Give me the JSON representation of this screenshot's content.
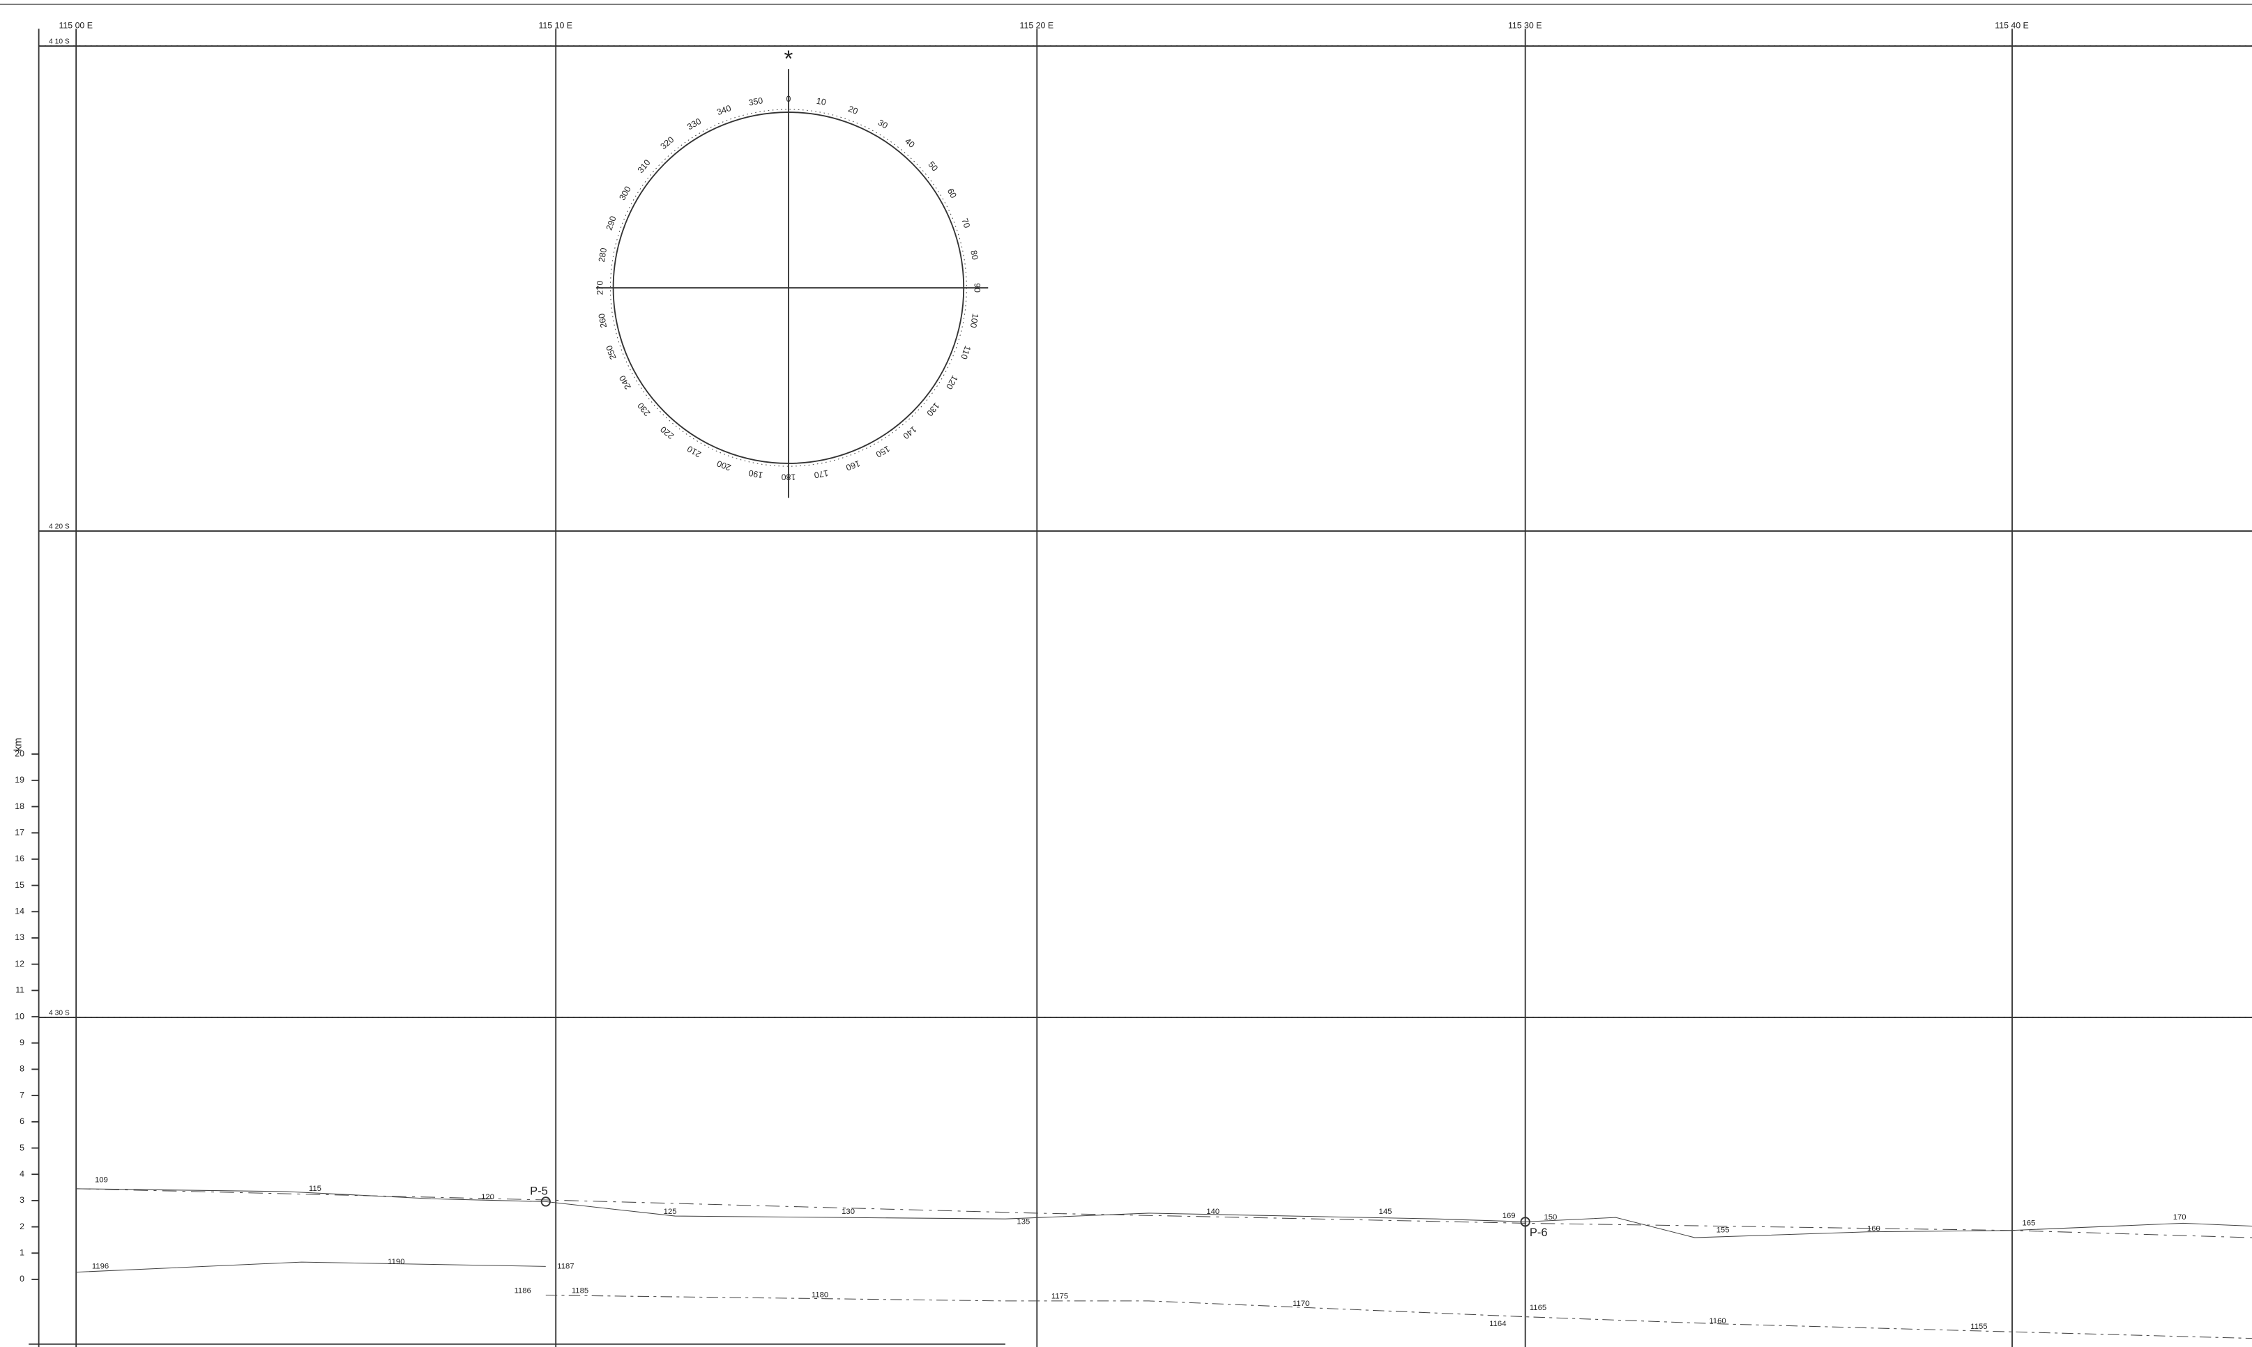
{
  "map": {
    "longitude_labels": [
      "115 00 E",
      "115 10 E",
      "115 20 E",
      "115 30 E",
      "115 40 E"
    ],
    "latitude_labels": [
      "4 10 S",
      "4 20 S",
      "4 30 S"
    ],
    "scale": {
      "unit": "km",
      "ticks": [
        0,
        1,
        2,
        3,
        4,
        5,
        6,
        7,
        8,
        9,
        10,
        11,
        12,
        13,
        14,
        15,
        16,
        17,
        18,
        19,
        20
      ]
    },
    "compass": {
      "north_marker": "*",
      "bearings": [
        0,
        10,
        20,
        30,
        40,
        50,
        60,
        70,
        80,
        90,
        100,
        110,
        120,
        130,
        140,
        150,
        160,
        170,
        180,
        190,
        200,
        210,
        220,
        230,
        240,
        250,
        260,
        270,
        280,
        290,
        300,
        310,
        320,
        330,
        340,
        350
      ]
    },
    "stations": [
      "P-5",
      "P-6"
    ],
    "upper_track_labels": [
      "109",
      "115",
      "120",
      "125",
      "130",
      "135",
      "140",
      "145",
      "169",
      "150",
      "155",
      "160",
      "165",
      "170"
    ],
    "lower_track_labels": [
      "1196",
      "1190",
      "1187",
      "1186",
      "1185",
      "1180",
      "1175",
      "1170",
      "1165",
      "1164",
      "1160",
      "1155"
    ]
  }
}
